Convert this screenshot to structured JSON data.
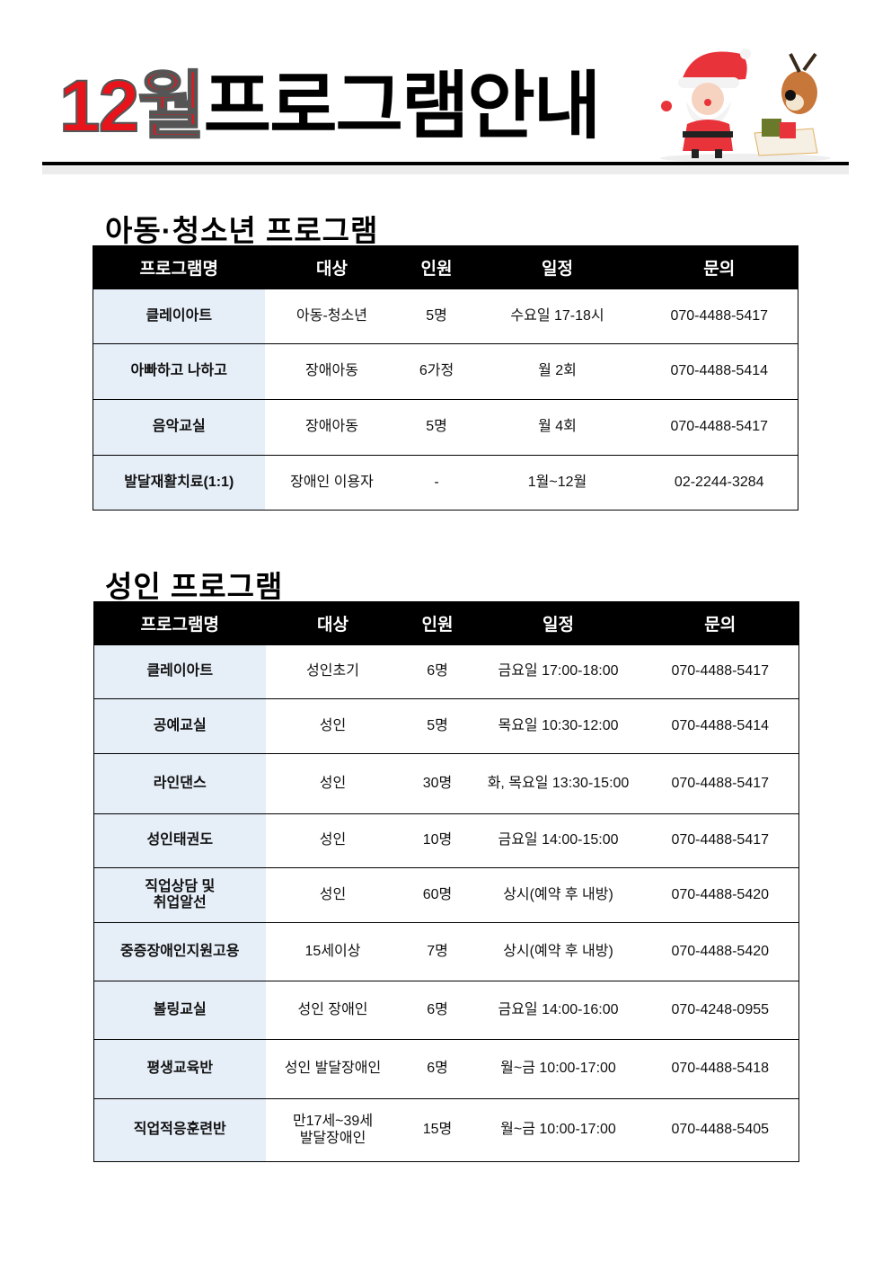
{
  "header": {
    "title_red": "12월",
    "title_black": "프로그램안내",
    "decoration": "santa-and-reindeer-illustration"
  },
  "columns": [
    "프로그램명",
    "대상",
    "인원",
    "일정",
    "문의"
  ],
  "sections": [
    {
      "title": "아동·청소년 프로그램",
      "rows": [
        [
          "클레이아트",
          "아동-청소년",
          "5명",
          "수요일 17-18시",
          "070-4488-5417"
        ],
        [
          "아빠하고 나하고",
          "장애아동",
          "6가정",
          "월 2회",
          "070-4488-5414"
        ],
        [
          "음악교실",
          "장애아동",
          "5명",
          "월 4회",
          "070-4488-5417"
        ],
        [
          "발달재활치료(1:1)",
          "장애인 이용자",
          "-",
          "1월~12월",
          "02-2244-3284"
        ]
      ]
    },
    {
      "title": "성인 프로그램",
      "rows": [
        [
          "클레이아트",
          "성인초기",
          "6명",
          "금요일 17:00-18:00",
          "070-4488-5417"
        ],
        [
          "공예교실",
          "성인",
          "5명",
          "목요일 10:30-12:00",
          "070-4488-5414"
        ],
        [
          "라인댄스",
          "성인",
          "30명",
          "화, 목요일 13:30-15:00",
          "070-4488-5417"
        ],
        [
          "성인태권도",
          "성인",
          "10명",
          "금요일 14:00-15:00",
          "070-4488-5417"
        ],
        [
          "직업상담 및\n취업알선",
          "성인",
          "60명",
          "상시(예약 후 내방)",
          "070-4488-5420"
        ],
        [
          "중증장애인지원고용",
          "15세이상",
          "7명",
          "상시(예약 후 내방)",
          "070-4488-5420"
        ],
        [
          "볼링교실",
          "성인 장애인",
          "6명",
          "금요일 14:00-16:00",
          "070-4248-0955"
        ],
        [
          "평생교육반",
          "성인 발달장애인",
          "6명",
          "월~금 10:00-17:00",
          "070-4488-5418"
        ],
        [
          "직업적응훈련반",
          "만17세~39세\n발달장애인",
          "15명",
          "월~금 10:00-17:00",
          "070-4488-5405"
        ]
      ]
    }
  ]
}
